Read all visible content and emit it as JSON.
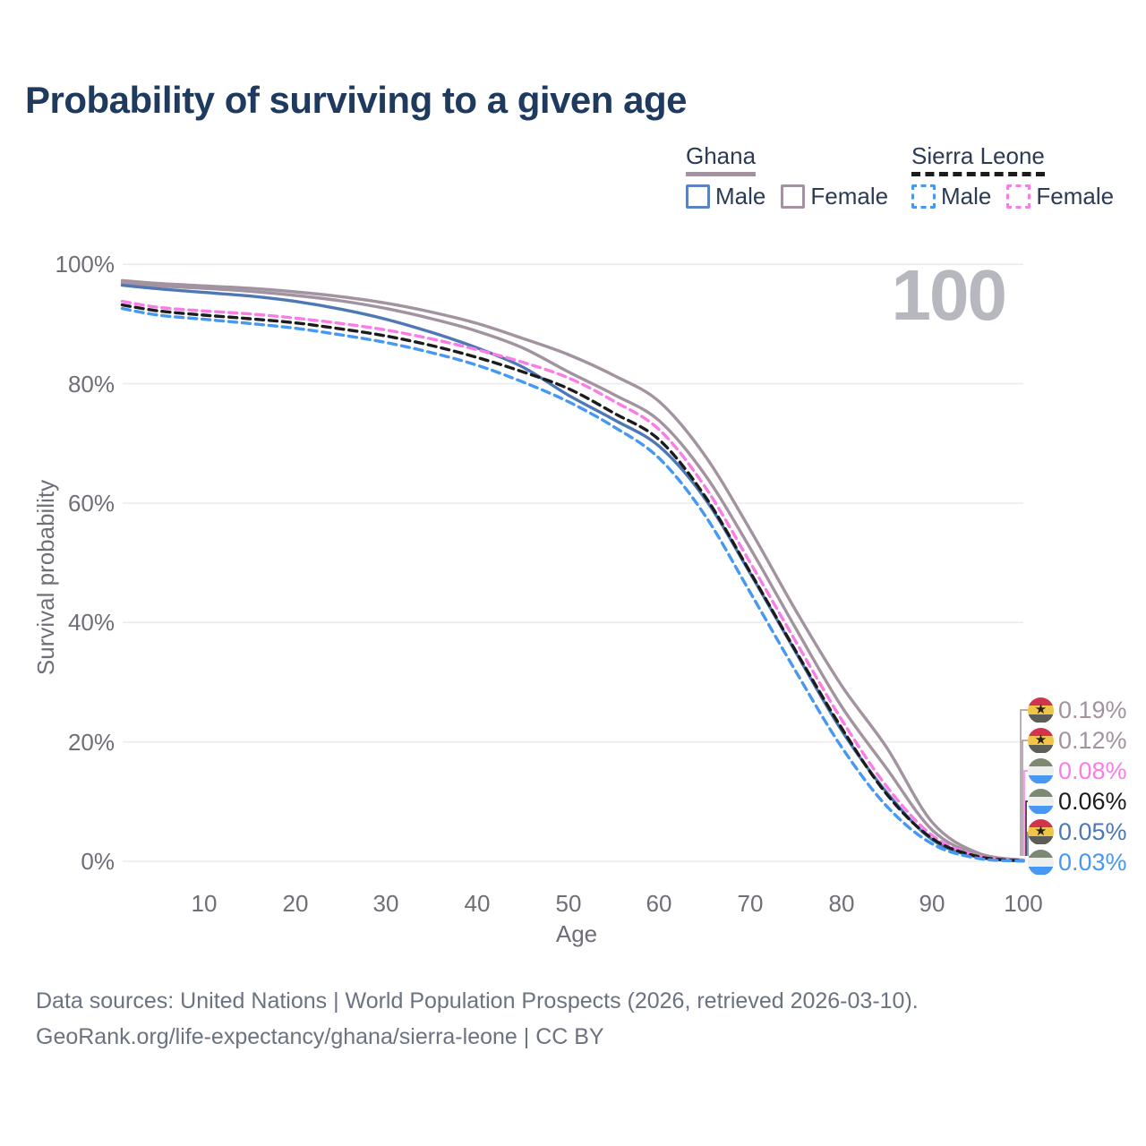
{
  "title": "Probability of surviving to a given age",
  "watermark": "100",
  "legend": {
    "groups": [
      {
        "name": "Ghana",
        "underline_style": "solid",
        "underline_color": "#a3929f",
        "items": [
          {
            "label": "Male",
            "box_color": "#5b83c0",
            "box_style": "solid"
          },
          {
            "label": "Female",
            "box_color": "#a3929f",
            "box_style": "solid"
          }
        ]
      },
      {
        "name": "Sierra Leone",
        "underline_style": "dashed",
        "underline_color": "#1c1c1c",
        "items": [
          {
            "label": "Male",
            "box_color": "#4698f2",
            "box_style": "dashed"
          },
          {
            "label": "Female",
            "box_color": "#fa7de6",
            "box_style": "dashed"
          }
        ]
      }
    ]
  },
  "chart_data": {
    "type": "line",
    "title": "Probability of surviving to a given age",
    "xlabel": "Age",
    "ylabel": "Survival probability",
    "xlim": [
      0,
      100
    ],
    "ylim": [
      0,
      100
    ],
    "grid": "horizontal",
    "legend_position": "top-right",
    "x_ticks": [
      "10",
      "20",
      "30",
      "40",
      "50",
      "60",
      "70",
      "80",
      "90",
      "100"
    ],
    "x_tick_values": [
      10,
      20,
      30,
      40,
      50,
      60,
      70,
      80,
      90,
      100
    ],
    "y_ticks": [
      "0%",
      "20%",
      "40%",
      "60%",
      "80%",
      "100%"
    ],
    "y_tick_values": [
      0,
      20,
      40,
      60,
      80,
      100
    ],
    "ages": [
      1,
      5,
      10,
      15,
      20,
      25,
      30,
      35,
      40,
      45,
      50,
      55,
      60,
      65,
      70,
      75,
      80,
      85,
      90,
      95,
      100
    ],
    "series": [
      {
        "id": "ghana-female",
        "name": "Ghana Female",
        "country": "Ghana",
        "sex": "Female",
        "color": "#a3929f",
        "style": "solid",
        "end_value_label": "0.19%",
        "values": [
          97.3,
          96.8,
          96.4,
          96.0,
          95.4,
          94.6,
          93.5,
          92.0,
          90.1,
          87.6,
          84.9,
          81.4,
          77.0,
          68.0,
          55.5,
          42.0,
          29.5,
          19.0,
          6.5,
          1.4,
          0.19
        ]
      },
      {
        "id": "ghana-overall",
        "name": "Ghana",
        "country": "Ghana",
        "sex": "Both",
        "color": "#a3929f",
        "style": "solid",
        "end_value_label": "0.12%",
        "values": [
          96.9,
          96.4,
          96.0,
          95.5,
          94.8,
          93.9,
          92.6,
          90.9,
          88.8,
          86.0,
          82.0,
          78.2,
          73.8,
          64.8,
          52.4,
          39.0,
          26.0,
          15.5,
          5.2,
          1.1,
          0.12
        ]
      },
      {
        "id": "ghana-male",
        "name": "Ghana Male",
        "country": "Ghana",
        "sex": "Male",
        "color": "#4d78b6",
        "style": "solid",
        "end_value_label": "0.05%",
        "values": [
          96.5,
          95.9,
          95.3,
          94.7,
          93.8,
          92.5,
          90.8,
          88.6,
          86.0,
          82.8,
          78.1,
          74.0,
          69.5,
          60.8,
          48.2,
          35.0,
          22.0,
          11.5,
          3.6,
          0.7,
          0.05
        ]
      },
      {
        "id": "sierra-leone-female",
        "name": "Sierra Leone Female",
        "country": "Sierra Leone",
        "sex": "Female",
        "color": "#fa7de6",
        "style": "dashed",
        "end_value_label": "0.08%",
        "values": [
          93.8,
          92.8,
          92.2,
          91.7,
          91.0,
          90.1,
          89.0,
          87.5,
          85.7,
          83.6,
          81.0,
          77.1,
          72.3,
          62.8,
          50.0,
          36.8,
          23.8,
          12.5,
          4.3,
          0.9,
          0.08
        ]
      },
      {
        "id": "sierra-leone-overall",
        "name": "Sierra Leone",
        "country": "Sierra Leone",
        "sex": "Both",
        "color": "#1c1c1c",
        "style": "dashed",
        "end_value_label": "0.06%",
        "values": [
          93.2,
          92.2,
          91.5,
          90.9,
          90.2,
          89.2,
          88.0,
          86.4,
          84.4,
          82.0,
          79.2,
          75.1,
          70.6,
          61.2,
          48.4,
          35.2,
          22.4,
          11.2,
          3.8,
          0.8,
          0.06
        ]
      },
      {
        "id": "sierra-leone-male",
        "name": "Sierra Leone Male",
        "country": "Sierra Leone",
        "sex": "Male",
        "color": "#4698f2",
        "style": "dashed",
        "end_value_label": "0.03%",
        "values": [
          92.6,
          91.5,
          90.8,
          90.1,
          89.3,
          88.2,
          86.9,
          85.2,
          83.1,
          80.3,
          77.0,
          72.8,
          67.5,
          58.0,
          45.0,
          31.8,
          19.2,
          9.2,
          2.9,
          0.5,
          0.03
        ]
      }
    ],
    "end_labels": [
      {
        "flag": "ghana",
        "value": "0.19%",
        "color": "#a3929f",
        "series": "ghana-female"
      },
      {
        "flag": "ghana",
        "value": "0.12%",
        "color": "#a3929f",
        "series": "ghana-overall"
      },
      {
        "flag": "sierra-leone",
        "value": "0.08%",
        "color": "#fa7de6",
        "series": "sierra-leone-female"
      },
      {
        "flag": "sierra-leone",
        "value": "0.06%",
        "color": "#1c1c1c",
        "series": "sierra-leone-overall"
      },
      {
        "flag": "ghana",
        "value": "0.05%",
        "color": "#4d78b6",
        "series": "ghana-male"
      },
      {
        "flag": "sierra-leone",
        "value": "0.03%",
        "color": "#4698f2",
        "series": "sierra-leone-male"
      }
    ]
  },
  "flags": {
    "ghana": {
      "stripes": [
        "#d2344e",
        "#f0c64a",
        "#5c5f58"
      ],
      "star": "★",
      "star_color": "#26221a"
    },
    "sierra-leone": {
      "stripes": [
        "#7d8973",
        "#efefed",
        "#4698f2"
      ]
    }
  },
  "colors": {
    "title": "#1e3a5f",
    "legend_text": "#2b3a55",
    "axis_text": "#6e6e78",
    "gridline": "#ebebee",
    "watermark": "#b7b7bf",
    "footer_text": "#6b7280"
  },
  "footer": {
    "line1": "Data sources: United Nations | World Population Prospects (2026, retrieved 2026-03-10).",
    "line2": "GeoRank.org/life-expectancy/ghana/sierra-leone | CC BY"
  }
}
